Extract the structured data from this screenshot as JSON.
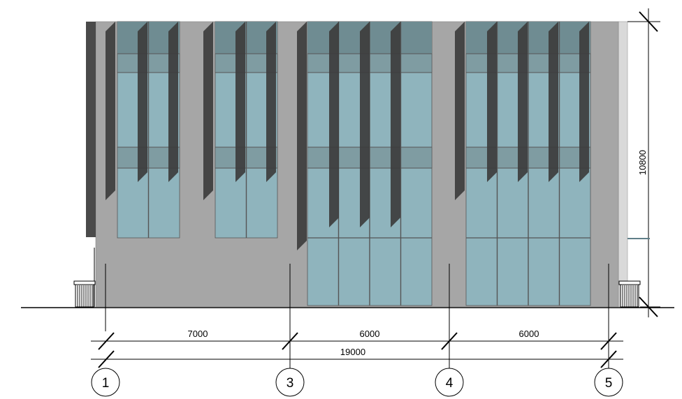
{
  "drawing": {
    "type": "building-elevation",
    "overall_width_label": "19000",
    "height_label": "10800",
    "spans": [
      {
        "from": "1",
        "to": "3",
        "label": "7000"
      },
      {
        "from": "3",
        "to": "4",
        "label": "6000"
      },
      {
        "from": "4",
        "to": "5",
        "label": "6000"
      }
    ],
    "axes": [
      {
        "id": "axis-1",
        "label": "1"
      },
      {
        "id": "axis-3",
        "label": "3"
      },
      {
        "id": "axis-4",
        "label": "4"
      },
      {
        "id": "axis-5",
        "label": "5"
      }
    ],
    "colors": {
      "wall": "#a6a6a6",
      "wall_dark": "#4a4a4a",
      "glass": "#8fb4bd",
      "glass_dark": "#6f8c92",
      "glass_band": "#7f9ca2",
      "fin": "#3d3d3d",
      "line": "#000000"
    }
  }
}
